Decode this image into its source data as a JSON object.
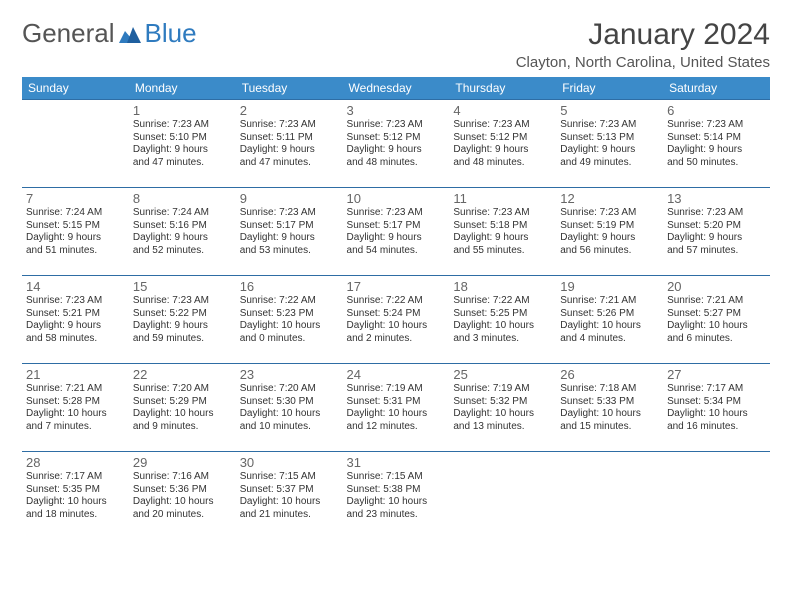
{
  "brand": {
    "part1": "General",
    "part2": "Blue"
  },
  "title": "January 2024",
  "location": "Clayton, North Carolina, United States",
  "style": {
    "header_bg": "#3b8bc9",
    "header_fg": "#ffffff",
    "row_border": "#2e6da4",
    "text_color": "#333333",
    "daynum_color": "#666666",
    "body_bg": "#ffffff",
    "title_fontsize": 30,
    "location_fontsize": 15,
    "dayheader_fontsize": 12,
    "info_fontsize": 10
  },
  "day_headers": [
    "Sunday",
    "Monday",
    "Tuesday",
    "Wednesday",
    "Thursday",
    "Friday",
    "Saturday"
  ],
  "weeks": [
    [
      null,
      {
        "n": "1",
        "sr": "Sunrise: 7:23 AM",
        "ss": "Sunset: 5:10 PM",
        "d1": "Daylight: 9 hours",
        "d2": "and 47 minutes."
      },
      {
        "n": "2",
        "sr": "Sunrise: 7:23 AM",
        "ss": "Sunset: 5:11 PM",
        "d1": "Daylight: 9 hours",
        "d2": "and 47 minutes."
      },
      {
        "n": "3",
        "sr": "Sunrise: 7:23 AM",
        "ss": "Sunset: 5:12 PM",
        "d1": "Daylight: 9 hours",
        "d2": "and 48 minutes."
      },
      {
        "n": "4",
        "sr": "Sunrise: 7:23 AM",
        "ss": "Sunset: 5:12 PM",
        "d1": "Daylight: 9 hours",
        "d2": "and 48 minutes."
      },
      {
        "n": "5",
        "sr": "Sunrise: 7:23 AM",
        "ss": "Sunset: 5:13 PM",
        "d1": "Daylight: 9 hours",
        "d2": "and 49 minutes."
      },
      {
        "n": "6",
        "sr": "Sunrise: 7:23 AM",
        "ss": "Sunset: 5:14 PM",
        "d1": "Daylight: 9 hours",
        "d2": "and 50 minutes."
      }
    ],
    [
      {
        "n": "7",
        "sr": "Sunrise: 7:24 AM",
        "ss": "Sunset: 5:15 PM",
        "d1": "Daylight: 9 hours",
        "d2": "and 51 minutes."
      },
      {
        "n": "8",
        "sr": "Sunrise: 7:24 AM",
        "ss": "Sunset: 5:16 PM",
        "d1": "Daylight: 9 hours",
        "d2": "and 52 minutes."
      },
      {
        "n": "9",
        "sr": "Sunrise: 7:23 AM",
        "ss": "Sunset: 5:17 PM",
        "d1": "Daylight: 9 hours",
        "d2": "and 53 minutes."
      },
      {
        "n": "10",
        "sr": "Sunrise: 7:23 AM",
        "ss": "Sunset: 5:17 PM",
        "d1": "Daylight: 9 hours",
        "d2": "and 54 minutes."
      },
      {
        "n": "11",
        "sr": "Sunrise: 7:23 AM",
        "ss": "Sunset: 5:18 PM",
        "d1": "Daylight: 9 hours",
        "d2": "and 55 minutes."
      },
      {
        "n": "12",
        "sr": "Sunrise: 7:23 AM",
        "ss": "Sunset: 5:19 PM",
        "d1": "Daylight: 9 hours",
        "d2": "and 56 minutes."
      },
      {
        "n": "13",
        "sr": "Sunrise: 7:23 AM",
        "ss": "Sunset: 5:20 PM",
        "d1": "Daylight: 9 hours",
        "d2": "and 57 minutes."
      }
    ],
    [
      {
        "n": "14",
        "sr": "Sunrise: 7:23 AM",
        "ss": "Sunset: 5:21 PM",
        "d1": "Daylight: 9 hours",
        "d2": "and 58 minutes."
      },
      {
        "n": "15",
        "sr": "Sunrise: 7:23 AM",
        "ss": "Sunset: 5:22 PM",
        "d1": "Daylight: 9 hours",
        "d2": "and 59 minutes."
      },
      {
        "n": "16",
        "sr": "Sunrise: 7:22 AM",
        "ss": "Sunset: 5:23 PM",
        "d1": "Daylight: 10 hours",
        "d2": "and 0 minutes."
      },
      {
        "n": "17",
        "sr": "Sunrise: 7:22 AM",
        "ss": "Sunset: 5:24 PM",
        "d1": "Daylight: 10 hours",
        "d2": "and 2 minutes."
      },
      {
        "n": "18",
        "sr": "Sunrise: 7:22 AM",
        "ss": "Sunset: 5:25 PM",
        "d1": "Daylight: 10 hours",
        "d2": "and 3 minutes."
      },
      {
        "n": "19",
        "sr": "Sunrise: 7:21 AM",
        "ss": "Sunset: 5:26 PM",
        "d1": "Daylight: 10 hours",
        "d2": "and 4 minutes."
      },
      {
        "n": "20",
        "sr": "Sunrise: 7:21 AM",
        "ss": "Sunset: 5:27 PM",
        "d1": "Daylight: 10 hours",
        "d2": "and 6 minutes."
      }
    ],
    [
      {
        "n": "21",
        "sr": "Sunrise: 7:21 AM",
        "ss": "Sunset: 5:28 PM",
        "d1": "Daylight: 10 hours",
        "d2": "and 7 minutes."
      },
      {
        "n": "22",
        "sr": "Sunrise: 7:20 AM",
        "ss": "Sunset: 5:29 PM",
        "d1": "Daylight: 10 hours",
        "d2": "and 9 minutes."
      },
      {
        "n": "23",
        "sr": "Sunrise: 7:20 AM",
        "ss": "Sunset: 5:30 PM",
        "d1": "Daylight: 10 hours",
        "d2": "and 10 minutes."
      },
      {
        "n": "24",
        "sr": "Sunrise: 7:19 AM",
        "ss": "Sunset: 5:31 PM",
        "d1": "Daylight: 10 hours",
        "d2": "and 12 minutes."
      },
      {
        "n": "25",
        "sr": "Sunrise: 7:19 AM",
        "ss": "Sunset: 5:32 PM",
        "d1": "Daylight: 10 hours",
        "d2": "and 13 minutes."
      },
      {
        "n": "26",
        "sr": "Sunrise: 7:18 AM",
        "ss": "Sunset: 5:33 PM",
        "d1": "Daylight: 10 hours",
        "d2": "and 15 minutes."
      },
      {
        "n": "27",
        "sr": "Sunrise: 7:17 AM",
        "ss": "Sunset: 5:34 PM",
        "d1": "Daylight: 10 hours",
        "d2": "and 16 minutes."
      }
    ],
    [
      {
        "n": "28",
        "sr": "Sunrise: 7:17 AM",
        "ss": "Sunset: 5:35 PM",
        "d1": "Daylight: 10 hours",
        "d2": "and 18 minutes."
      },
      {
        "n": "29",
        "sr": "Sunrise: 7:16 AM",
        "ss": "Sunset: 5:36 PM",
        "d1": "Daylight: 10 hours",
        "d2": "and 20 minutes."
      },
      {
        "n": "30",
        "sr": "Sunrise: 7:15 AM",
        "ss": "Sunset: 5:37 PM",
        "d1": "Daylight: 10 hours",
        "d2": "and 21 minutes."
      },
      {
        "n": "31",
        "sr": "Sunrise: 7:15 AM",
        "ss": "Sunset: 5:38 PM",
        "d1": "Daylight: 10 hours",
        "d2": "and 23 minutes."
      },
      null,
      null,
      null
    ]
  ]
}
